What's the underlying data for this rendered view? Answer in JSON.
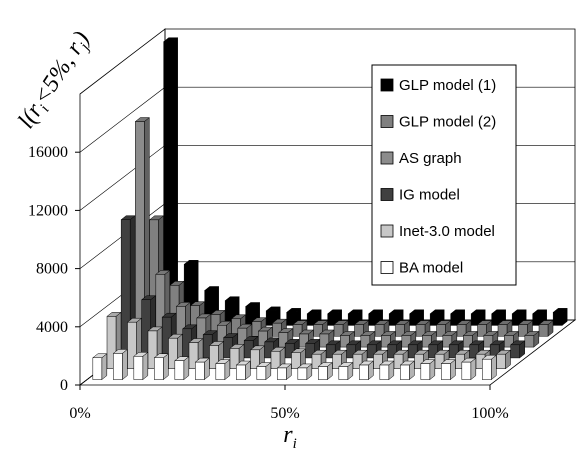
{
  "chart_data": {
    "type": "bar3d",
    "ylabel": [
      "l(r",
      "i",
      "<5%, r",
      "j",
      ")"
    ],
    "xlabel": [
      "r",
      "i"
    ],
    "xlim": [
      0,
      100
    ],
    "xticks": [
      {
        "value": 0,
        "label": "0%"
      },
      {
        "value": 50,
        "label": "50%"
      },
      {
        "value": 100,
        "label": "100%"
      }
    ],
    "ylim": [
      0,
      20000
    ],
    "yticks": [
      0,
      4000,
      8000,
      12000,
      16000
    ],
    "grid": true,
    "legend": "top-right",
    "x": [
      5,
      10,
      15,
      20,
      25,
      30,
      35,
      40,
      45,
      50,
      55,
      60,
      65,
      70,
      75,
      80,
      85,
      90,
      95,
      100
    ],
    "series": [
      {
        "name": "GLP model (1)",
        "color": "#000000",
        "values": [
          19500,
          4200,
          2400,
          1700,
          1300,
          1000,
          900,
          800,
          800,
          800,
          800,
          800,
          800,
          800,
          800,
          800,
          800,
          800,
          800,
          900
        ]
      },
      {
        "name": "GLP model (2)",
        "color": "#808080",
        "values": [
          8000,
          3500,
          2100,
          1500,
          1200,
          1000,
          900,
          800,
          800,
          800,
          800,
          800,
          800,
          800,
          800,
          800,
          800,
          800,
          800,
          800
        ]
      },
      {
        "name": "AS graph",
        "color": "#8c8c8c",
        "values": [
          15500,
          5000,
          2800,
          2000,
          1500,
          1300,
          1100,
          1000,
          900,
          900,
          800,
          800,
          800,
          800,
          800,
          800,
          800,
          800,
          800,
          800
        ]
      },
      {
        "name": "IG model",
        "color": "#404040",
        "values": [
          9500,
          4000,
          2800,
          2000,
          1600,
          1400,
          1200,
          1100,
          1000,
          1000,
          900,
          900,
          900,
          900,
          900,
          900,
          900,
          900,
          900,
          900
        ]
      },
      {
        "name": "Inet-3.0 model",
        "color": "#c8c8c8",
        "values": [
          3600,
          3200,
          2600,
          2100,
          1800,
          1600,
          1400,
          1300,
          1200,
          1100,
          1000,
          1000,
          1000,
          1000,
          1000,
          1000,
          1000,
          1000,
          1000,
          1000
        ]
      },
      {
        "name": "BA model",
        "color": "#ffffff",
        "values": [
          1500,
          1800,
          1600,
          1500,
          1300,
          1200,
          1100,
          1000,
          900,
          800,
          800,
          900,
          900,
          1000,
          1000,
          1000,
          1100,
          1100,
          1200,
          1400
        ]
      }
    ]
  }
}
